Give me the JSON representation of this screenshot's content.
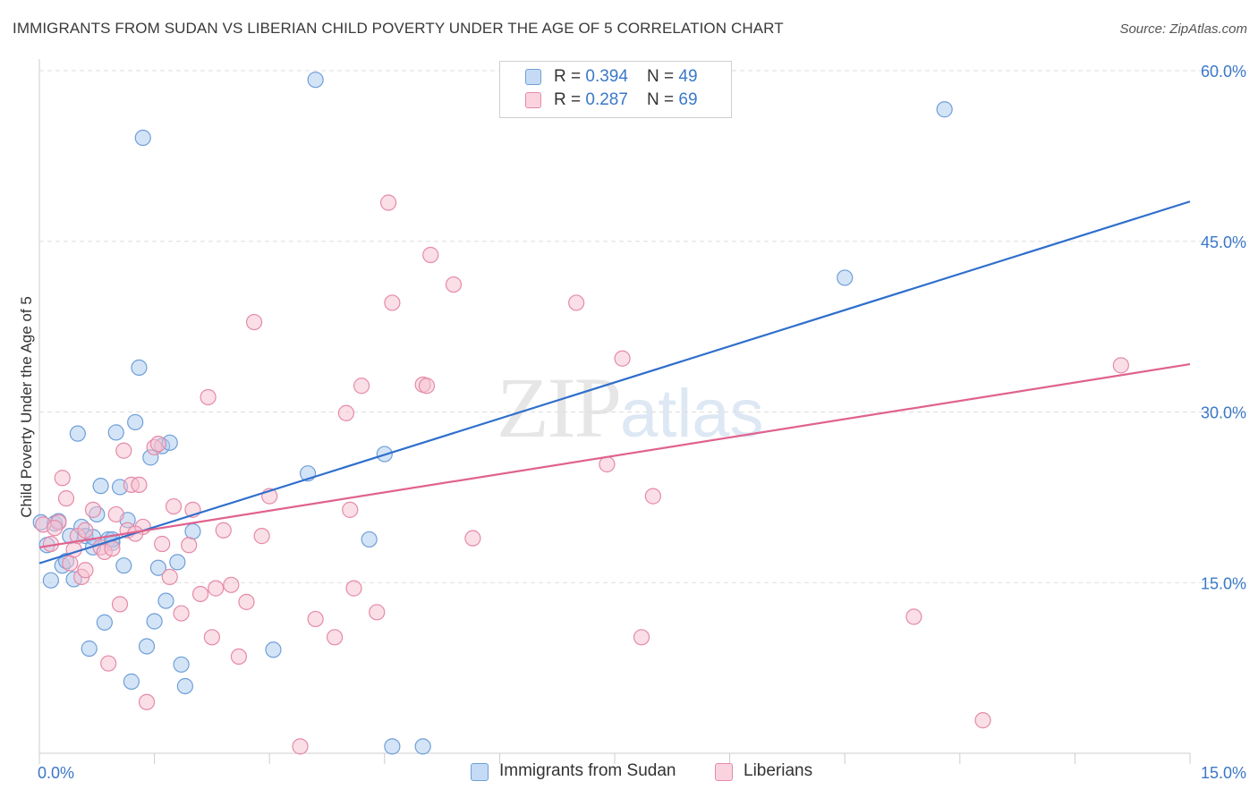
{
  "title": "IMMIGRANTS FROM SUDAN VS LIBERIAN CHILD POVERTY UNDER THE AGE OF 5 CORRELATION CHART",
  "source": "Source: ZipAtlas.com",
  "watermark": {
    "zip": "ZIP",
    "atlas": "atlas"
  },
  "legend": [
    {
      "r_label": "R = ",
      "r": "0.394",
      "n_label": "N = ",
      "n": "49"
    },
    {
      "r_label": "R = ",
      "r": "0.287",
      "n_label": "N = ",
      "n": "69"
    }
  ],
  "colors": {
    "sudan_fill": "#a9c9ef",
    "sudan_stroke": "#6f9fd8",
    "sudan_line": "#2f6fcc",
    "liberian_fill": "#f6bfd0",
    "liberian_stroke": "#e58aa8",
    "liberian_line": "#e0628e",
    "tick_label": "#3a78c8",
    "grid": "#dddddd"
  },
  "chart_data": {
    "type": "scatter",
    "xlabel": "",
    "ylabel": "Child Poverty Under the Age of 5",
    "xlim": [
      0,
      15
    ],
    "ylim": [
      0,
      60.0
    ],
    "x_tick_labels": [
      {
        "value": 0,
        "label": "0.0%"
      },
      {
        "value": 15,
        "label": "15.0%"
      }
    ],
    "y_tick_labels": [
      {
        "value": 15,
        "label": "15.0%"
      },
      {
        "value": 30,
        "label": "30.0%"
      },
      {
        "value": 45,
        "label": "45.0%"
      },
      {
        "value": 60,
        "label": "60.0%"
      }
    ],
    "grid": true,
    "series": [
      {
        "name": "Immigrants from Sudan",
        "points": [
          [
            0.02,
            20.3
          ],
          [
            0.1,
            18.3
          ],
          [
            0.15,
            15.2
          ],
          [
            0.2,
            20.2
          ],
          [
            0.3,
            16.5
          ],
          [
            0.35,
            16.9
          ],
          [
            0.4,
            19.1
          ],
          [
            0.45,
            15.3
          ],
          [
            0.55,
            19.9
          ],
          [
            0.6,
            19.1
          ],
          [
            0.65,
            9.2
          ],
          [
            0.7,
            18.1
          ],
          [
            0.75,
            21.0
          ],
          [
            0.8,
            23.5
          ],
          [
            0.85,
            11.5
          ],
          [
            0.9,
            18.8
          ],
          [
            0.95,
            18.5
          ],
          [
            1.0,
            28.2
          ],
          [
            1.05,
            23.4
          ],
          [
            1.1,
            16.5
          ],
          [
            1.15,
            20.5
          ],
          [
            1.2,
            6.3
          ],
          [
            1.25,
            29.1
          ],
          [
            1.3,
            33.9
          ],
          [
            1.35,
            54.1
          ],
          [
            1.4,
            9.4
          ],
          [
            1.45,
            26.0
          ],
          [
            1.5,
            11.6
          ],
          [
            1.55,
            16.3
          ],
          [
            1.6,
            27.0
          ],
          [
            1.65,
            13.4
          ],
          [
            1.7,
            27.3
          ],
          [
            1.8,
            16.8
          ],
          [
            1.85,
            7.8
          ],
          [
            1.9,
            5.9
          ],
          [
            2.0,
            19.5
          ],
          [
            3.05,
            9.1
          ],
          [
            3.5,
            24.6
          ],
          [
            3.6,
            59.2
          ],
          [
            4.3,
            18.8
          ],
          [
            4.5,
            26.3
          ],
          [
            4.6,
            0.6
          ],
          [
            5.0,
            0.6
          ],
          [
            10.5,
            41.8
          ],
          [
            11.8,
            56.6
          ],
          [
            0.5,
            28.1
          ],
          [
            0.25,
            20.4
          ],
          [
            0.95,
            18.8
          ],
          [
            0.7,
            19.0
          ]
        ],
        "trend": {
          "x": [
            0,
            15
          ],
          "y": [
            16.7,
            48.5
          ]
        }
      },
      {
        "name": "Liberians",
        "points": [
          [
            0.05,
            20.1
          ],
          [
            0.15,
            18.4
          ],
          [
            0.25,
            20.3
          ],
          [
            0.3,
            24.2
          ],
          [
            0.35,
            22.4
          ],
          [
            0.4,
            16.7
          ],
          [
            0.45,
            17.9
          ],
          [
            0.5,
            19.1
          ],
          [
            0.55,
            15.5
          ],
          [
            0.6,
            16.1
          ],
          [
            0.7,
            21.4
          ],
          [
            0.8,
            18.1
          ],
          [
            0.85,
            17.7
          ],
          [
            0.9,
            7.9
          ],
          [
            0.95,
            18.0
          ],
          [
            1.0,
            21.0
          ],
          [
            1.05,
            13.1
          ],
          [
            1.1,
            26.6
          ],
          [
            1.15,
            19.6
          ],
          [
            1.2,
            23.6
          ],
          [
            1.3,
            23.6
          ],
          [
            1.35,
            19.9
          ],
          [
            1.4,
            4.5
          ],
          [
            1.5,
            26.9
          ],
          [
            1.55,
            27.2
          ],
          [
            1.6,
            18.4
          ],
          [
            1.7,
            15.5
          ],
          [
            1.75,
            21.7
          ],
          [
            1.85,
            12.3
          ],
          [
            1.95,
            18.3
          ],
          [
            2.0,
            21.4
          ],
          [
            2.1,
            14.0
          ],
          [
            2.2,
            31.3
          ],
          [
            2.25,
            10.2
          ],
          [
            2.3,
            14.5
          ],
          [
            2.4,
            19.6
          ],
          [
            2.5,
            14.8
          ],
          [
            2.6,
            8.5
          ],
          [
            2.7,
            13.3
          ],
          [
            2.8,
            37.9
          ],
          [
            2.9,
            19.1
          ],
          [
            3.0,
            22.6
          ],
          [
            3.4,
            0.6
          ],
          [
            3.6,
            11.8
          ],
          [
            3.85,
            10.2
          ],
          [
            4.0,
            29.9
          ],
          [
            4.05,
            21.4
          ],
          [
            4.1,
            14.5
          ],
          [
            4.2,
            32.3
          ],
          [
            4.4,
            12.4
          ],
          [
            4.55,
            48.4
          ],
          [
            4.6,
            39.6
          ],
          [
            5.0,
            32.4
          ],
          [
            5.05,
            32.3
          ],
          [
            5.1,
            43.8
          ],
          [
            5.4,
            41.2
          ],
          [
            5.65,
            18.9
          ],
          [
            7.0,
            39.6
          ],
          [
            7.4,
            25.4
          ],
          [
            7.6,
            34.7
          ],
          [
            7.85,
            10.2
          ],
          [
            8.0,
            22.6
          ],
          [
            8.6,
            56.6
          ],
          [
            11.4,
            12.0
          ],
          [
            12.3,
            2.9
          ],
          [
            14.1,
            34.1
          ],
          [
            0.6,
            19.6
          ],
          [
            0.2,
            19.8
          ],
          [
            1.25,
            19.3
          ]
        ],
        "trend": {
          "x": [
            0,
            15
          ],
          "y": [
            18.1,
            34.2
          ]
        }
      }
    ],
    "legend_position": "bottom-center"
  }
}
